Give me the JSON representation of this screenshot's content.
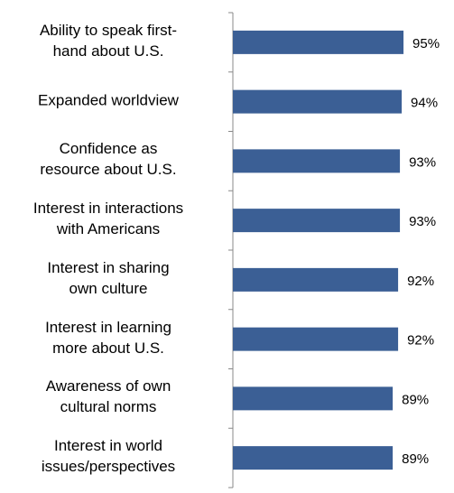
{
  "chart_data": {
    "type": "bar",
    "orientation": "horizontal",
    "categories": [
      "Ability to speak first-\nhand about U.S.",
      "Expanded worldview",
      "Confidence as\nresource about U.S.",
      "Interest in interactions\nwith Americans",
      "Interest in sharing\nown culture",
      "Interest in learning\nmore about U.S.",
      "Awareness of own\ncultural norms",
      "Interest in world\nissues/perspectives"
    ],
    "values": [
      95,
      94,
      93,
      93,
      92,
      92,
      89,
      89
    ],
    "value_labels": [
      "95%",
      "94%",
      "93%",
      "93%",
      "92%",
      "92%",
      "89%",
      "89%"
    ],
    "color": "#3b5f95",
    "xlim": [
      0,
      100
    ]
  }
}
